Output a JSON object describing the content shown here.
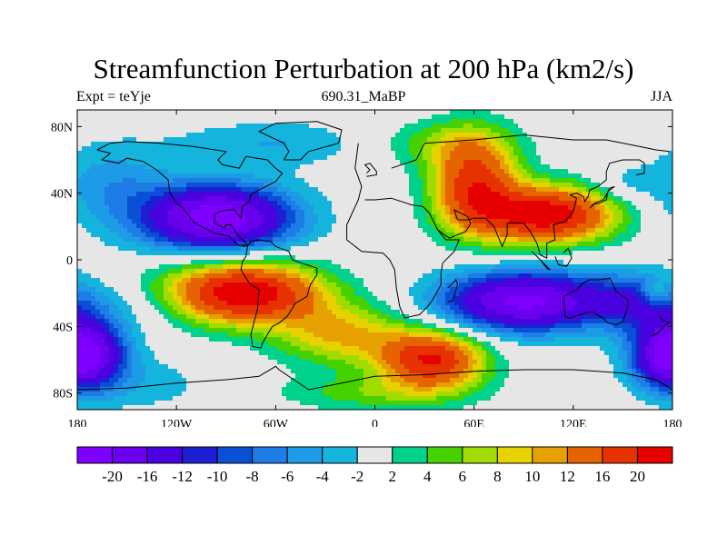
{
  "chart_data": {
    "type": "heatmap",
    "title": "Streamfunction Perturbation at 200 hPa (km2/s)",
    "left_label": "Expt = teYje",
    "center_label": "690.31_MaBP",
    "right_label": "JJA",
    "x_tick_labels": [
      "180",
      "120W",
      "60W",
      "0",
      "60E",
      "120E",
      "180"
    ],
    "x_ticks_lon": [
      -180,
      -120,
      -60,
      0,
      60,
      120,
      180
    ],
    "y_tick_labels": [
      "80N",
      "40N",
      "0",
      "40S",
      "80S"
    ],
    "y_ticks_lat": [
      80,
      40,
      0,
      -40,
      -80
    ],
    "xlim": [
      -180,
      180
    ],
    "ylim": [
      -90,
      90
    ],
    "levels": [
      -20,
      -16,
      -12,
      -10,
      -8,
      -6,
      -4,
      -2,
      2,
      4,
      6,
      8,
      10,
      12,
      16,
      20
    ],
    "level_labels": [
      "-20",
      "-16",
      "-12",
      "-10",
      "-8",
      "-6",
      "-4",
      "-2",
      "2",
      "4",
      "6",
      "8",
      "10",
      "12",
      "16",
      "20"
    ],
    "colors": [
      "#7f00ff",
      "#6a00ee",
      "#4b00e0",
      "#1e1ed2",
      "#0a50d7",
      "#1e7ce6",
      "#1e9be6",
      "#14b4dc",
      "#e6e6e6",
      "#00d28c",
      "#46d200",
      "#a0dc00",
      "#e6d200",
      "#e6a000",
      "#e66400",
      "#e63200",
      "#e60000"
    ],
    "features": [
      {
        "lon": -95,
        "lat": 25,
        "amp": -23,
        "sx": 32,
        "sy": 14
      },
      {
        "lon": -160,
        "lat": 45,
        "amp": -5,
        "sx": 25,
        "sy": 18
      },
      {
        "lon": -60,
        "lat": 70,
        "amp": -4,
        "sx": 45,
        "sy": 10
      },
      {
        "lon": -80,
        "lat": -20,
        "amp": 24,
        "sx": 33,
        "sy": 13
      },
      {
        "lon": -20,
        "lat": -45,
        "amp": 10,
        "sx": 28,
        "sy": 13
      },
      {
        "lon": 35,
        "lat": -60,
        "amp": 20,
        "sx": 22,
        "sy": 12
      },
      {
        "lon": 0,
        "lat": -80,
        "amp": 5,
        "sx": 40,
        "sy": 8
      },
      {
        "lon": 60,
        "lat": 45,
        "amp": 18,
        "sx": 18,
        "sy": 20
      },
      {
        "lon": 105,
        "lat": 27,
        "amp": 23,
        "sx": 28,
        "sy": 12
      },
      {
        "lon": 40,
        "lat": 70,
        "amp": 5,
        "sx": 30,
        "sy": 10
      },
      {
        "lon": 90,
        "lat": -25,
        "amp": -21,
        "sx": 35,
        "sy": 13
      },
      {
        "lon": 160,
        "lat": -25,
        "amp": -9,
        "sx": 22,
        "sy": 12
      },
      {
        "lon": -175,
        "lat": -55,
        "amp": -14,
        "sx": 18,
        "sy": 14
      },
      {
        "lon": 178,
        "lat": -58,
        "amp": -12,
        "sx": 16,
        "sy": 14
      },
      {
        "lon": -140,
        "lat": -28,
        "amp": -3,
        "sx": 30,
        "sy": 10
      },
      {
        "lon": 170,
        "lat": -20,
        "amp": 6,
        "sx": 6,
        "sy": 5
      },
      {
        "lon": 150,
        "lat": 45,
        "amp": -3,
        "sx": 15,
        "sy": 8
      },
      {
        "lon": -140,
        "lat": -75,
        "amp": -3,
        "sx": 30,
        "sy": 12
      }
    ]
  }
}
